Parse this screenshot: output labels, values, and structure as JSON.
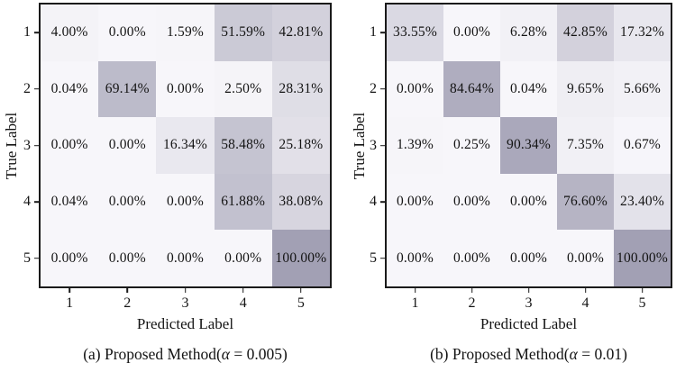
{
  "figure": {
    "background": "#ffffff",
    "text_color": "#141414",
    "axis_border_color": "#1a1a1a"
  },
  "chart_data": [
    {
      "type": "heatmap",
      "panel": "a",
      "caption_prefix": "(a) Proposed Method(",
      "caption_alpha": "α",
      "caption_suffix": " = 0.005)",
      "xlabel": "Predicted Label",
      "ylabel": "True Label",
      "x_ticks": [
        "1",
        "2",
        "3",
        "4",
        "5"
      ],
      "y_ticks": [
        "1",
        "2",
        "3",
        "4",
        "5"
      ],
      "values_percent": [
        [
          4.0,
          0.0,
          1.59,
          51.59,
          42.81
        ],
        [
          0.04,
          69.14,
          0.0,
          2.5,
          28.31
        ],
        [
          0.0,
          0.0,
          16.34,
          58.48,
          25.18
        ],
        [
          0.04,
          0.0,
          0.0,
          61.88,
          38.08
        ],
        [
          0.0,
          0.0,
          0.0,
          0.0,
          100.0
        ]
      ],
      "cell_labels": [
        [
          "4.00%",
          "0.00%",
          "1.59%",
          "51.59%",
          "42.81%"
        ],
        [
          "0.04%",
          "69.14%",
          "0.00%",
          "2.50%",
          "28.31%"
        ],
        [
          "0.00%",
          "0.00%",
          "16.34%",
          "58.48%",
          "25.18%"
        ],
        [
          "0.04%",
          "0.00%",
          "0.00%",
          "61.88%",
          "38.08%"
        ],
        [
          "0.00%",
          "0.00%",
          "0.00%",
          "0.00%",
          "100.00%"
        ]
      ],
      "colormap": {
        "min_color": "#f7f6fa",
        "max_color": "#a2a0b4",
        "vmin": 0,
        "vmax": 100
      }
    },
    {
      "type": "heatmap",
      "panel": "b",
      "caption_prefix": "(b) Proposed Method(",
      "caption_alpha": "α",
      "caption_suffix": " = 0.01)",
      "xlabel": "Predicted Label",
      "ylabel": "True Label",
      "x_ticks": [
        "1",
        "2",
        "3",
        "4",
        "5"
      ],
      "y_ticks": [
        "1",
        "2",
        "3",
        "4",
        "5"
      ],
      "values_percent": [
        [
          33.55,
          0.0,
          6.28,
          42.85,
          17.32
        ],
        [
          0.0,
          84.64,
          0.04,
          9.65,
          5.66
        ],
        [
          1.39,
          0.25,
          90.34,
          7.35,
          0.67
        ],
        [
          0.0,
          0.0,
          0.0,
          76.6,
          23.4
        ],
        [
          0.0,
          0.0,
          0.0,
          0.0,
          100.0
        ]
      ],
      "cell_labels": [
        [
          "33.55%",
          "0.00%",
          "6.28%",
          "42.85%",
          "17.32%"
        ],
        [
          "0.00%",
          "84.64%",
          "0.04%",
          "9.65%",
          "5.66%"
        ],
        [
          "1.39%",
          "0.25%",
          "90.34%",
          "7.35%",
          "0.67%"
        ],
        [
          "0.00%",
          "0.00%",
          "0.00%",
          "76.60%",
          "23.40%"
        ],
        [
          "0.00%",
          "0.00%",
          "0.00%",
          "0.00%",
          "100.00%"
        ]
      ],
      "colormap": {
        "min_color": "#f7f6fa",
        "max_color": "#a2a0b4",
        "vmin": 0,
        "vmax": 100
      }
    }
  ]
}
